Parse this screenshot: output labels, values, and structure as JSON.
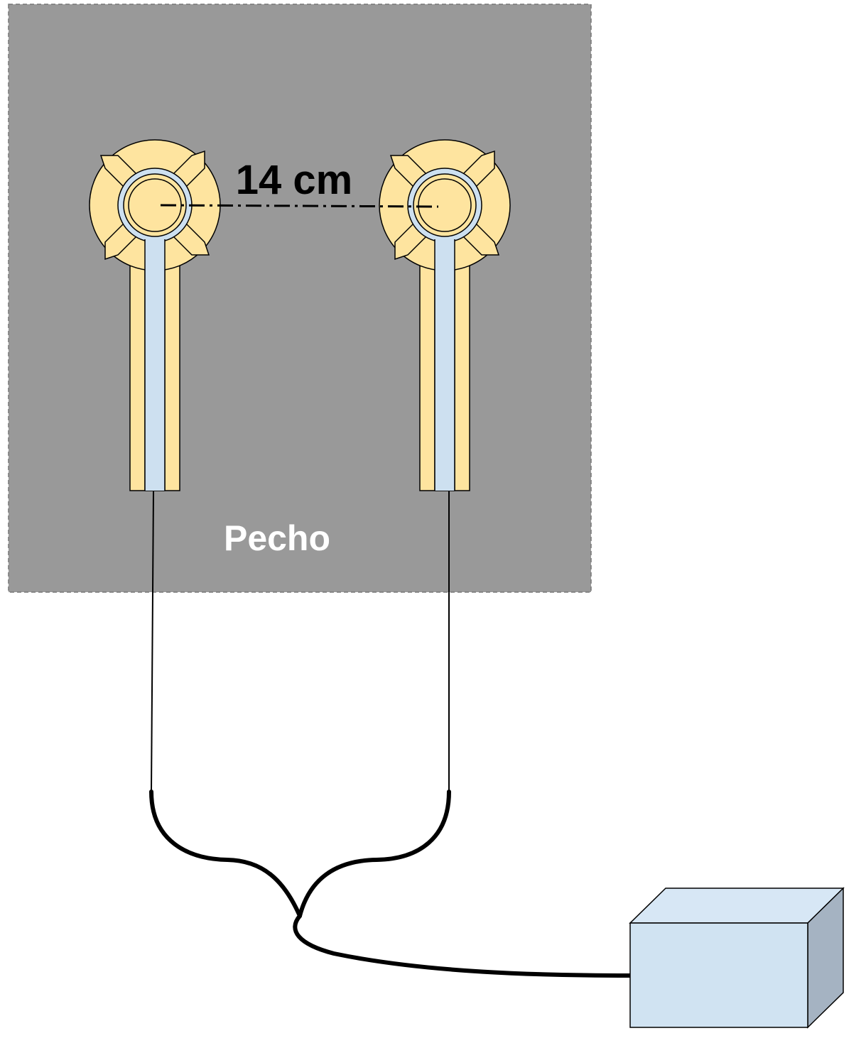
{
  "distance_label": "14 cm",
  "region_label": "Pecho",
  "colors": {
    "chest": "#999999",
    "chest_border": "#777777",
    "electrode_body": "#fee49f",
    "electrode_ring": "#cde0f0",
    "device_front": "#d0e3f2",
    "device_top": "#d7e7f5",
    "device_side": "#a5b3c2",
    "stroke": "#000000",
    "region_text": "#ffffff",
    "distance_text": "#000000"
  }
}
